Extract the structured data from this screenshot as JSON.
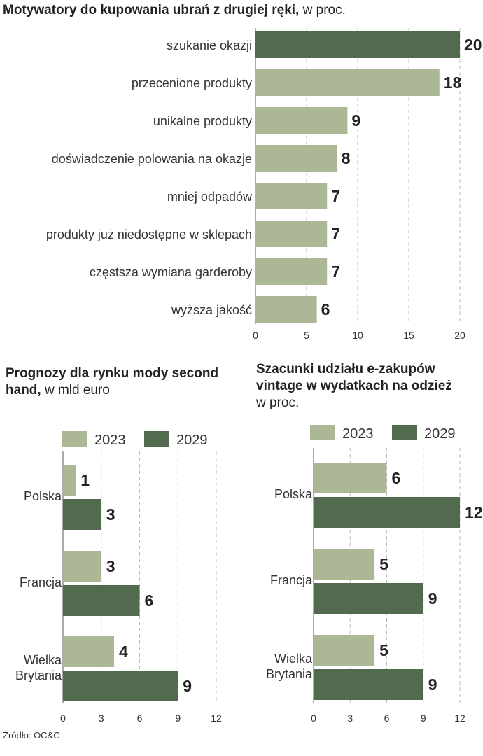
{
  "colors": {
    "light": "#acb796",
    "dark": "#526b4e",
    "grid": "#bdbdbd",
    "axis": "#555555"
  },
  "chart1": {
    "title_bold": "Motywatory do kupowania ubrań z drugiej ręki,",
    "title_rest": " w proc."
  },
  "chart2": {
    "title_line1": "Prognozy dla rynku mody second",
    "title_line2_bold": "hand,",
    "title_line2_rest": " w mld euro"
  },
  "chart3": {
    "title_line1": "Szacunki udziału e-zakupów",
    "title_line2": "vintage w wydatkach na odzież",
    "title_line3": "w proc."
  },
  "source": "Źródło: OC&C",
  "chart_data": [
    {
      "type": "bar",
      "orientation": "horizontal",
      "title": "Motywatory do kupowania ubrań z drugiej ręki, w proc.",
      "categories": [
        "szukanie okazji",
        "przecenione produkty",
        "unikalne produkty",
        "doświadczenie polowania na okazje",
        "mniej odpadów",
        "produkty już niedostępne w sklepach",
        "częstsza wymiana garderoby",
        "wyższa jakość"
      ],
      "values": [
        20,
        18,
        9,
        8,
        7,
        7,
        7,
        6
      ],
      "highlight_index": 0,
      "xlim": [
        0,
        20
      ],
      "xticks": [
        0,
        5,
        10,
        15,
        20
      ],
      "grid": true
    },
    {
      "type": "bar",
      "orientation": "horizontal",
      "title": "Prognozy dla rynku mody second hand, w mld euro",
      "categories": [
        [
          "Polska"
        ],
        [
          "Francja"
        ],
        [
          "Wielka",
          "Brytania"
        ]
      ],
      "series": [
        {
          "name": "2023",
          "values": [
            1,
            3,
            4
          ]
        },
        {
          "name": "2029",
          "values": [
            3,
            6,
            9
          ]
        }
      ],
      "xlim": [
        0,
        12
      ],
      "xticks": [
        0,
        3,
        6,
        9,
        12
      ],
      "legend": "top",
      "grid": true
    },
    {
      "type": "bar",
      "orientation": "horizontal",
      "title": "Szacunki udziału e-zakupów vintage w wydatkach na odzież w proc.",
      "categories": [
        [
          "Polska"
        ],
        [
          "Francja"
        ],
        [
          "Wielka",
          "Brytania"
        ]
      ],
      "series": [
        {
          "name": "2023",
          "values": [
            6,
            5,
            5
          ]
        },
        {
          "name": "2029",
          "values": [
            12,
            9,
            9
          ]
        }
      ],
      "xlim": [
        0,
        12
      ],
      "xticks": [
        0,
        3,
        6,
        9,
        12
      ],
      "legend": "top",
      "grid": true
    }
  ]
}
